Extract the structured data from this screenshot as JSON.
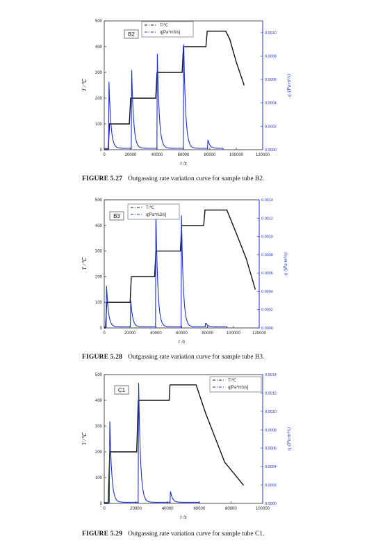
{
  "chart_data": [
    {
      "type": "line",
      "tag": "B2",
      "xlabel": "t /s",
      "ylabel": "T /℃",
      "y2label": "q /(Pa·m³/s)",
      "xlim": [
        0,
        120000
      ],
      "ylim": [
        0,
        500
      ],
      "y2lim": [
        0,
        0.0011
      ],
      "xticks": [
        "0",
        "20000",
        "40000",
        "60000",
        "80000",
        "100000",
        "120000"
      ],
      "yticks": [
        "0",
        "100",
        "200",
        "300",
        "400",
        "500"
      ],
      "y2ticks": [
        "0.0000",
        "0.0002",
        "0.0004",
        "0.0006",
        "0.0008",
        "0.0010"
      ],
      "legend": [
        "T/℃",
        "q[Pa*m3/s]"
      ],
      "legend_position": "top-left",
      "series": [
        {
          "name": "T/℃",
          "axis": "left",
          "color": "#111111",
          "x": [
            0,
            3000,
            4000,
            19000,
            20000,
            39000,
            40000,
            59000,
            60000,
            77000,
            78000,
            92000,
            95000,
            100000,
            106000
          ],
          "y": [
            0,
            0,
            100,
            100,
            200,
            200,
            300,
            300,
            400,
            400,
            460,
            460,
            430,
            340,
            250
          ]
        },
        {
          "name": "q[Pa*m3/s]",
          "axis": "right",
          "color": "#1a2fd8",
          "spikes": [
            [
              3600,
              0.00058
            ],
            [
              20800,
              0.00068
            ],
            [
              40200,
              0.00082
            ],
            [
              60200,
              0.0009
            ],
            [
              78500,
              8e-05
            ]
          ],
          "tail_end": 90000
        }
      ]
    },
    {
      "type": "line",
      "tag": "B3",
      "xlabel": "t /s",
      "ylabel": "T /℃",
      "y2label": "q /(Pa·m³/s)",
      "xlim": [
        0,
        120000
      ],
      "ylim": [
        0,
        500
      ],
      "y2lim": [
        0,
        0.0014
      ],
      "xticks": [
        "0",
        "20000",
        "40000",
        "60000",
        "80000",
        "100000",
        "120000"
      ],
      "yticks": [
        "0",
        "100",
        "200",
        "300",
        "400",
        "500"
      ],
      "y2ticks": [
        "0.0000",
        "0.0002",
        "0.0004",
        "0.0006",
        "0.0008",
        "0.0010",
        "0.0012",
        "0.0014"
      ],
      "legend": [
        "T/℃",
        "q[Pa*m3/s]"
      ],
      "legend_position": "top-left",
      "series": [
        {
          "name": "T/℃",
          "axis": "left",
          "color": "#111111",
          "x": [
            0,
            1000,
            2000,
            20000,
            21000,
            39000,
            40000,
            59000,
            60000,
            77000,
            78000,
            95000,
            103000,
            110000,
            117000
          ],
          "y": [
            0,
            0,
            100,
            100,
            200,
            200,
            300,
            300,
            400,
            400,
            460,
            460,
            360,
            270,
            150
          ]
        },
        {
          "name": "q[Pa*m3/s]",
          "axis": "right",
          "color": "#1a2fd8",
          "spikes": [
            [
              1800,
              0.00046
            ],
            [
              20500,
              0.0003
            ],
            [
              40000,
              0.00128
            ],
            [
              59800,
              0.00123
            ],
            [
              78500,
              5e-05
            ]
          ],
          "tail_end": 95000
        }
      ]
    },
    {
      "type": "line",
      "tag": "C1",
      "xlabel": "t /s",
      "ylabel": "T /℃",
      "y2label": "q /(Pa·m³/s)",
      "xlim": [
        0,
        100000
      ],
      "ylim": [
        0,
        500
      ],
      "y2lim": [
        0,
        0.0014
      ],
      "xticks": [
        "0",
        "20000",
        "40000",
        "60000",
        "80000",
        "100000"
      ],
      "yticks": [
        "0",
        "100",
        "200",
        "300",
        "400",
        "500"
      ],
      "y2ticks": [
        "0.0000",
        "0.0002",
        "0.0004",
        "0.0006",
        "0.0008",
        "0.0010",
        "0.0012",
        "0.0014"
      ],
      "legend": [
        "T/℃",
        "q[Pa*m3/s]"
      ],
      "legend_position": "top-right",
      "series": [
        {
          "name": "T/℃",
          "axis": "left",
          "color": "#111111",
          "x": [
            0,
            2500,
            3500,
            20500,
            21500,
            41000,
            41500,
            58000,
            64000,
            76000,
            88000
          ],
          "y": [
            0,
            0,
            200,
            200,
            400,
            400,
            460,
            460,
            350,
            160,
            70
          ]
        },
        {
          "name": "q[Pa*m3/s]",
          "axis": "right",
          "color": "#1a2fd8",
          "spikes": [
            [
              3500,
              0.00089
            ],
            [
              21700,
              0.00131
            ],
            [
              41800,
              0.00013
            ]
          ],
          "tail_end": 60000
        }
      ]
    }
  ],
  "captions": [
    {
      "num": "FIGURE 5.27",
      "text": "Outgassing rate variation curve for sample tube B2."
    },
    {
      "num": "FIGURE 5.28",
      "text": "Outgassing rate variation curve for sample tube B3."
    },
    {
      "num": "FIGURE 5.29",
      "text": "Outgassing rate variation curve for sample tube C1."
    }
  ]
}
